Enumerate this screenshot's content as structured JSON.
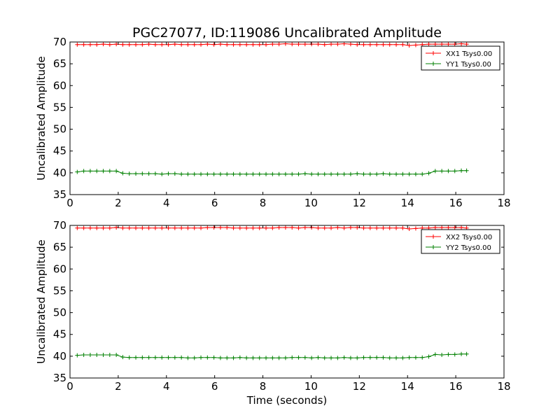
{
  "figure": {
    "title": "PGC27077, ID:119086 Uncalibrated Amplitude",
    "xlabel": "Time (seconds)"
  },
  "colors": {
    "xx": "#ff0000",
    "yy": "#008000",
    "axes": "#000000",
    "background": "#ffffff"
  },
  "chart_data": [
    {
      "type": "line",
      "title": "PGC27077, ID:119086 Uncalibrated Amplitude",
      "xlabel": "",
      "ylabel": "Uncalibrated Amplitude",
      "xlim": [
        0,
        18
      ],
      "ylim": [
        35,
        70
      ],
      "xticks": [
        0,
        2,
        4,
        6,
        8,
        10,
        12,
        14,
        16,
        18
      ],
      "yticks": [
        35,
        40,
        45,
        50,
        55,
        60,
        65,
        70
      ],
      "legend_position": "top-right",
      "marker": "plus",
      "series": [
        {
          "name": "XX1 Tsys0.00",
          "color": "#ff0000",
          "x": [
            0.3,
            0.57,
            0.84,
            1.11,
            1.38,
            1.65,
            1.92,
            2.19,
            2.46,
            2.73,
            3.0,
            3.27,
            3.54,
            3.81,
            4.08,
            4.35,
            4.62,
            4.89,
            5.16,
            5.43,
            5.7,
            5.97,
            6.24,
            6.51,
            6.78,
            7.05,
            7.32,
            7.59,
            7.86,
            8.13,
            8.4,
            8.67,
            8.94,
            9.21,
            9.48,
            9.75,
            10.02,
            10.29,
            10.56,
            10.83,
            11.1,
            11.37,
            11.64,
            11.91,
            12.18,
            12.45,
            12.72,
            12.99,
            13.26,
            13.53,
            13.8,
            14.07,
            14.34,
            14.61,
            14.88,
            15.15,
            15.42,
            15.69,
            15.96,
            16.23,
            16.45
          ],
          "values": [
            69.4,
            69.4,
            69.4,
            69.4,
            69.5,
            69.4,
            69.5,
            69.4,
            69.4,
            69.4,
            69.4,
            69.5,
            69.4,
            69.4,
            69.4,
            69.5,
            69.4,
            69.4,
            69.4,
            69.4,
            69.5,
            69.4,
            69.5,
            69.4,
            69.4,
            69.4,
            69.4,
            69.4,
            69.4,
            69.4,
            69.5,
            69.5,
            69.6,
            69.5,
            69.5,
            69.5,
            69.5,
            69.5,
            69.4,
            69.5,
            69.5,
            69.6,
            69.5,
            69.4,
            69.4,
            69.4,
            69.4,
            69.4,
            69.4,
            69.4,
            69.4,
            69.2,
            69.3,
            69.4,
            69.5,
            69.5,
            69.5,
            69.5,
            69.5,
            69.6,
            69.5
          ]
        },
        {
          "name": "YY1 Tsys0.00",
          "color": "#008000",
          "x": [
            0.3,
            0.57,
            0.84,
            1.11,
            1.38,
            1.65,
            1.92,
            2.19,
            2.46,
            2.73,
            3.0,
            3.27,
            3.54,
            3.81,
            4.08,
            4.35,
            4.62,
            4.89,
            5.16,
            5.43,
            5.7,
            5.97,
            6.24,
            6.51,
            6.78,
            7.05,
            7.32,
            7.59,
            7.86,
            8.13,
            8.4,
            8.67,
            8.94,
            9.21,
            9.48,
            9.75,
            10.02,
            10.29,
            10.56,
            10.83,
            11.1,
            11.37,
            11.64,
            11.91,
            12.18,
            12.45,
            12.72,
            12.99,
            13.26,
            13.53,
            13.8,
            14.07,
            14.34,
            14.61,
            14.88,
            15.15,
            15.42,
            15.69,
            15.96,
            16.23,
            16.45
          ],
          "values": [
            40.2,
            40.4,
            40.4,
            40.4,
            40.4,
            40.4,
            40.4,
            39.9,
            39.8,
            39.8,
            39.8,
            39.8,
            39.8,
            39.7,
            39.8,
            39.8,
            39.7,
            39.7,
            39.7,
            39.7,
            39.7,
            39.7,
            39.7,
            39.7,
            39.7,
            39.7,
            39.7,
            39.7,
            39.7,
            39.7,
            39.7,
            39.7,
            39.7,
            39.7,
            39.7,
            39.8,
            39.7,
            39.7,
            39.7,
            39.7,
            39.7,
            39.7,
            39.7,
            39.8,
            39.7,
            39.7,
            39.7,
            39.8,
            39.7,
            39.7,
            39.7,
            39.7,
            39.7,
            39.7,
            39.9,
            40.4,
            40.4,
            40.4,
            40.4,
            40.5,
            40.5
          ]
        }
      ]
    },
    {
      "type": "line",
      "title": "",
      "xlabel": "Time (seconds)",
      "ylabel": "Uncalibrated Amplitude",
      "xlim": [
        0,
        18
      ],
      "ylim": [
        35,
        70
      ],
      "xticks": [
        0,
        2,
        4,
        6,
        8,
        10,
        12,
        14,
        16,
        18
      ],
      "yticks": [
        35,
        40,
        45,
        50,
        55,
        60,
        65,
        70
      ],
      "legend_position": "top-right",
      "marker": "plus",
      "series": [
        {
          "name": "XX2 Tsys0.00",
          "color": "#ff0000",
          "x": [
            0.3,
            0.57,
            0.84,
            1.11,
            1.38,
            1.65,
            1.92,
            2.19,
            2.46,
            2.73,
            3.0,
            3.27,
            3.54,
            3.81,
            4.08,
            4.35,
            4.62,
            4.89,
            5.16,
            5.43,
            5.7,
            5.97,
            6.24,
            6.51,
            6.78,
            7.05,
            7.32,
            7.59,
            7.86,
            8.13,
            8.4,
            8.67,
            8.94,
            9.21,
            9.48,
            9.75,
            10.02,
            10.29,
            10.56,
            10.83,
            11.1,
            11.37,
            11.64,
            11.91,
            12.18,
            12.45,
            12.72,
            12.99,
            13.26,
            13.53,
            13.8,
            14.07,
            14.34,
            14.61,
            14.88,
            15.15,
            15.42,
            15.69,
            15.96,
            16.23,
            16.45
          ],
          "values": [
            69.4,
            69.4,
            69.4,
            69.4,
            69.4,
            69.4,
            69.5,
            69.4,
            69.4,
            69.4,
            69.4,
            69.4,
            69.4,
            69.4,
            69.4,
            69.4,
            69.4,
            69.4,
            69.4,
            69.4,
            69.5,
            69.5,
            69.5,
            69.5,
            69.4,
            69.4,
            69.4,
            69.4,
            69.4,
            69.4,
            69.4,
            69.5,
            69.5,
            69.5,
            69.4,
            69.5,
            69.5,
            69.4,
            69.4,
            69.4,
            69.5,
            69.4,
            69.5,
            69.5,
            69.4,
            69.4,
            69.4,
            69.4,
            69.4,
            69.4,
            69.4,
            69.2,
            69.3,
            69.4,
            69.4,
            69.5,
            69.5,
            69.5,
            69.5,
            69.5,
            69.4
          ]
        },
        {
          "name": "YY2 Tsys0.00",
          "color": "#008000",
          "x": [
            0.3,
            0.57,
            0.84,
            1.11,
            1.38,
            1.65,
            1.92,
            2.19,
            2.46,
            2.73,
            3.0,
            3.27,
            3.54,
            3.81,
            4.08,
            4.35,
            4.62,
            4.89,
            5.16,
            5.43,
            5.7,
            5.97,
            6.24,
            6.51,
            6.78,
            7.05,
            7.32,
            7.59,
            7.86,
            8.13,
            8.4,
            8.67,
            8.94,
            9.21,
            9.48,
            9.75,
            10.02,
            10.29,
            10.56,
            10.83,
            11.1,
            11.37,
            11.64,
            11.91,
            12.18,
            12.45,
            12.72,
            12.99,
            13.26,
            13.53,
            13.8,
            14.07,
            14.34,
            14.61,
            14.88,
            15.15,
            15.42,
            15.69,
            15.96,
            16.23,
            16.45
          ],
          "values": [
            40.2,
            40.3,
            40.3,
            40.3,
            40.3,
            40.3,
            40.3,
            39.8,
            39.7,
            39.7,
            39.7,
            39.7,
            39.7,
            39.7,
            39.7,
            39.7,
            39.7,
            39.6,
            39.6,
            39.7,
            39.7,
            39.7,
            39.6,
            39.6,
            39.6,
            39.7,
            39.6,
            39.6,
            39.6,
            39.6,
            39.6,
            39.6,
            39.6,
            39.7,
            39.7,
            39.7,
            39.6,
            39.7,
            39.6,
            39.6,
            39.6,
            39.7,
            39.6,
            39.6,
            39.7,
            39.7,
            39.7,
            39.7,
            39.6,
            39.6,
            39.6,
            39.7,
            39.7,
            39.7,
            39.9,
            40.4,
            40.3,
            40.4,
            40.4,
            40.5,
            40.5
          ]
        }
      ]
    }
  ]
}
